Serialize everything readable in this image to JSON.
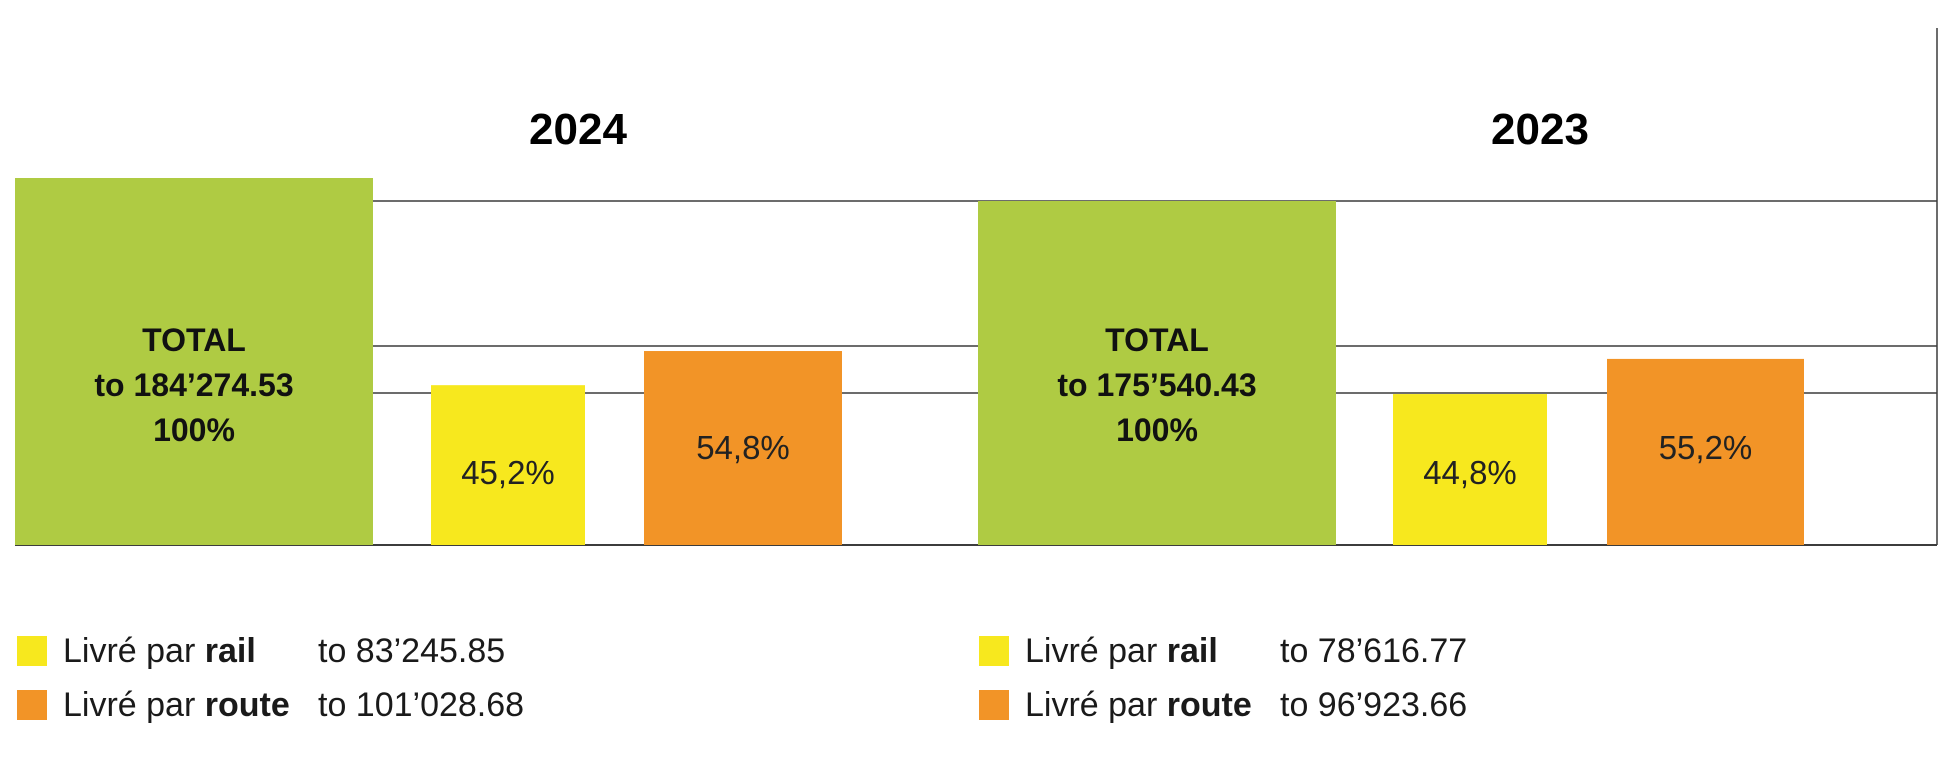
{
  "colors": {
    "total": "#afcb43",
    "rail": "#f7e81e",
    "route": "#f29427",
    "line": "#3c3c3c"
  },
  "chart_data": [
    {
      "type": "bar",
      "title": "2024",
      "categories": [
        "TOTAL",
        "Livré par rail",
        "Livré par route"
      ],
      "values": [
        184274.53,
        83245.85,
        101028.68
      ],
      "percent_labels": [
        "100%",
        "45,2%",
        "54,8%"
      ],
      "total_label": {
        "line1": "TOTAL",
        "line2": "to 184’274.53",
        "line3": "100%"
      },
      "legend": [
        {
          "prefix": "Livré par ",
          "bold": "rail",
          "value": "to 83’245.85",
          "color": "#f7e81e"
        },
        {
          "prefix": "Livré par ",
          "bold": "route",
          "value": "to 101’028.68",
          "color": "#f29427"
        }
      ]
    },
    {
      "type": "bar",
      "title": "2023",
      "categories": [
        "TOTAL",
        "Livré par rail",
        "Livré par route"
      ],
      "values": [
        175540.43,
        78616.77,
        96923.66
      ],
      "percent_labels": [
        "100%",
        "44,8%",
        "55,2%"
      ],
      "total_label": {
        "line1": "TOTAL",
        "line2": "to 175’540.43",
        "line3": "100%"
      },
      "legend": [
        {
          "prefix": "Livré par ",
          "bold": "rail",
          "value": "to 78’616.77",
          "color": "#f7e81e"
        },
        {
          "prefix": "Livré par ",
          "bold": "route",
          "value": "to 96’923.66",
          "color": "#f29427"
        }
      ]
    }
  ]
}
